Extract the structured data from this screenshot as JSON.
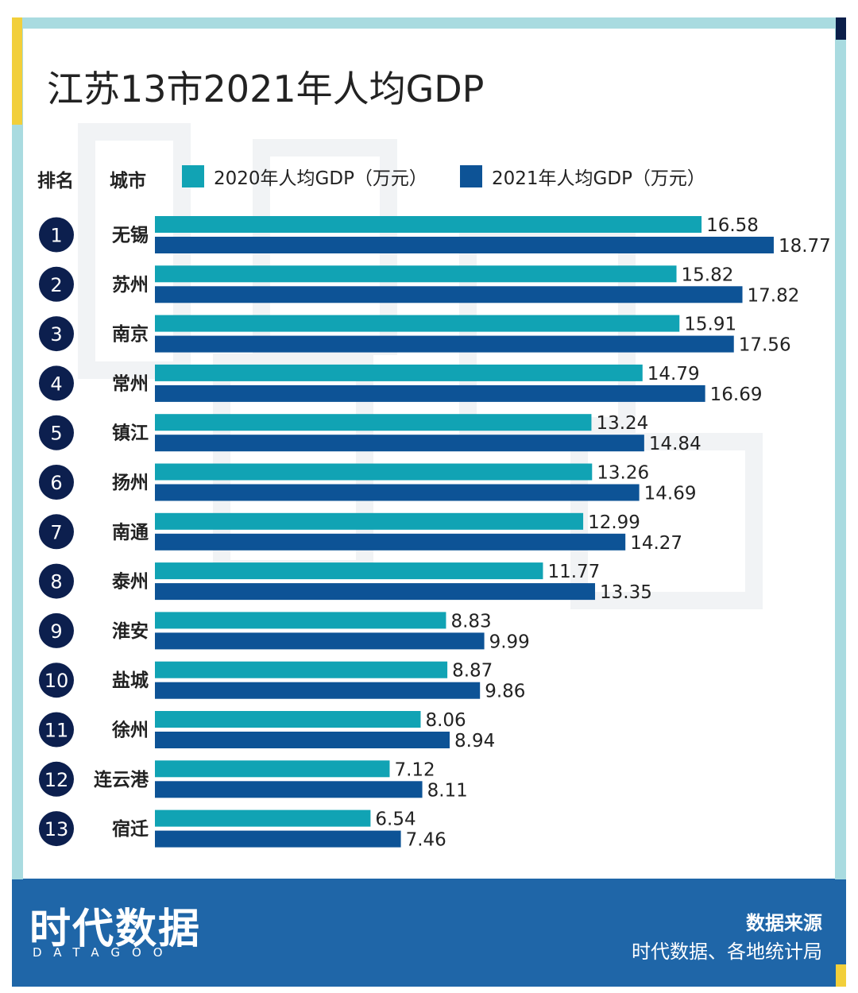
{
  "title": "江苏13市2021年人均GDP",
  "header": {
    "rank_label": "排名",
    "city_label": "城市"
  },
  "colors": {
    "series_2020": "#11a3b4",
    "series_2021": "#0d5396",
    "rank_badge": "#0c1f4e",
    "frame": "#1f66a8",
    "frame_light": "#a9dbe0"
  },
  "chart_data": {
    "type": "bar",
    "orientation": "horizontal",
    "title": "江苏13市2021年人均GDP",
    "legend_position": "top",
    "categories": [
      "无锡",
      "苏州",
      "南京",
      "常州",
      "镇江",
      "扬州",
      "南通",
      "泰州",
      "淮安",
      "盐城",
      "徐州",
      "连云港",
      "宿迁"
    ],
    "ranks": [
      "1",
      "2",
      "3",
      "4",
      "5",
      "6",
      "7",
      "8",
      "9",
      "10",
      "11",
      "12",
      "13"
    ],
    "series": [
      {
        "name": "2020年人均GDP（万元）",
        "values": [
          16.58,
          15.82,
          15.91,
          14.79,
          13.24,
          13.26,
          12.99,
          11.77,
          8.83,
          8.87,
          8.06,
          7.12,
          6.54
        ]
      },
      {
        "name": "2021年人均GDP（万元）",
        "values": [
          18.77,
          17.82,
          17.56,
          16.69,
          14.84,
          14.69,
          14.27,
          13.35,
          9.99,
          9.86,
          8.94,
          8.11,
          7.46
        ]
      }
    ]
  },
  "brand": {
    "logo": "时代数据",
    "logo_sub": "DATAGOO",
    "source_heading": "数据来源",
    "source_text": "时代数据、各地统计局"
  }
}
